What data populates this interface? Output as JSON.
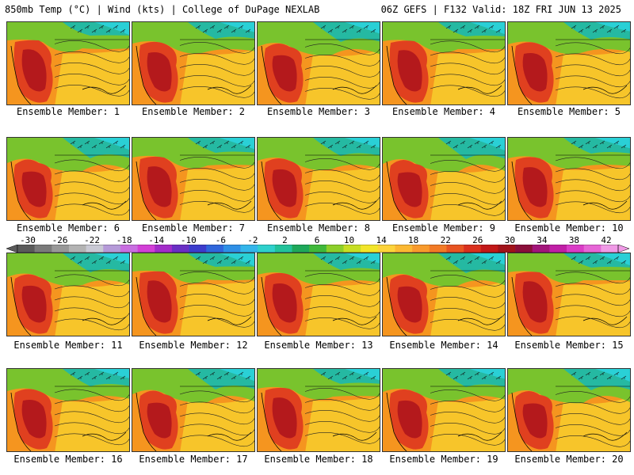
{
  "header": {
    "left": "850mb Temp (°C) | Wind (kts) | College of DuPage NEXLAB",
    "right": "06Z GEFS | F132 Valid: 18Z FRI JUN 13 2025"
  },
  "members": [
    "Ensemble Member: 1",
    "Ensemble Member: 2",
    "Ensemble Member: 3",
    "Ensemble Member: 4",
    "Ensemble Member: 5",
    "Ensemble Member: 6",
    "Ensemble Member: 7",
    "Ensemble Member: 8",
    "Ensemble Member: 9",
    "Ensemble Member: 10",
    "Ensemble Member: 11",
    "Ensemble Member: 12",
    "Ensemble Member: 13",
    "Ensemble Member: 14",
    "Ensemble Member: 15",
    "Ensemble Member: 16",
    "Ensemble Member: 17",
    "Ensemble Member: 18",
    "Ensemble Member: 19",
    "Ensemble Member: 20"
  ],
  "colorbar": {
    "ticks": [
      "-30",
      "-26",
      "-22",
      "-18",
      "-14",
      "-10",
      "-6",
      "-2",
      "2",
      "6",
      "10",
      "14",
      "18",
      "22",
      "26",
      "30",
      "34",
      "38",
      "42"
    ],
    "colors": [
      "#5a5a5a",
      "#7a7a7a",
      "#989898",
      "#b3b3b3",
      "#c9c9d4",
      "#b59ad8",
      "#c86ee0",
      "#d23fd6",
      "#a32cc9",
      "#6a2fc4",
      "#3c3ccc",
      "#2f66db",
      "#2f8fe6",
      "#33b5ea",
      "#2ed0cc",
      "#22c29a",
      "#1ea85a",
      "#3fb83a",
      "#8ccf2a",
      "#c6de24",
      "#f2e52a",
      "#fdd33a",
      "#fbb832",
      "#f89a2c",
      "#f27a26",
      "#e85422",
      "#d9301e",
      "#c21818",
      "#a1131a",
      "#8a0f3a",
      "#a2157a",
      "#c01fa6",
      "#da3cc6",
      "#e665d6",
      "#f09ae6"
    ]
  },
  "colors": {
    "hot_core": "#b4191c",
    "hot": "#e0401f",
    "warm": "#f5951f",
    "mild": "#f7c52a",
    "cool": "#79c32d",
    "cold": "#25b9a2",
    "cyan": "#2ad0d6"
  }
}
